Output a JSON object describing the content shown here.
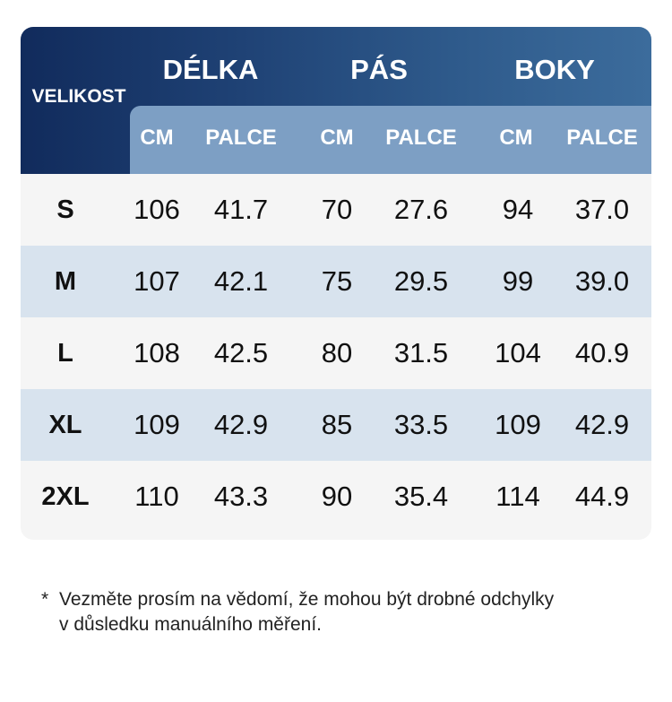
{
  "table": {
    "size_header": "VELIKOST",
    "groups": [
      {
        "label": "DÉLKA",
        "units": [
          "CM",
          "PALCE"
        ]
      },
      {
        "label": "PÁS",
        "units": [
          "CM",
          "PALCE"
        ]
      },
      {
        "label": "BOKY",
        "units": [
          "CM",
          "PALCE"
        ]
      }
    ],
    "rows": [
      {
        "size": "S",
        "values": [
          "106",
          "41.7",
          "70",
          "27.6",
          "94",
          "37.0"
        ]
      },
      {
        "size": "M",
        "values": [
          "107",
          "42.1",
          "75",
          "29.5",
          "99",
          "39.0"
        ]
      },
      {
        "size": "L",
        "values": [
          "108",
          "42.5",
          "80",
          "31.5",
          "104",
          "40.9"
        ]
      },
      {
        "size": "XL",
        "values": [
          "109",
          "42.9",
          "85",
          "33.5",
          "109",
          "42.9"
        ]
      },
      {
        "size": "2XL",
        "values": [
          "110",
          "43.3",
          "90",
          "35.4",
          "114",
          "44.9"
        ]
      }
    ]
  },
  "note": {
    "marker": "*",
    "line1": "Vezměte prosím na vědomí, že mohou být drobné odchylky",
    "line2": "v důsledku manuálního měření."
  }
}
